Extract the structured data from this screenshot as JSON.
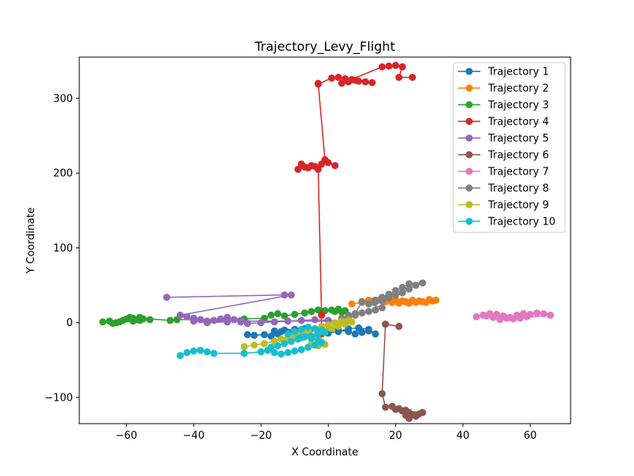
{
  "chart_data": {
    "type": "line",
    "title": "Trajectory_Levy_Flight",
    "xlabel": "X Coordinate",
    "ylabel": "Y Coordinate",
    "xlim": [
      -74,
      72
    ],
    "ylim": [
      -135,
      355
    ],
    "xticks": [
      -60,
      -40,
      -20,
      0,
      20,
      40,
      60
    ],
    "yticks": [
      -100,
      0,
      100,
      200,
      300
    ],
    "grid": false,
    "legend_position": "top-right",
    "marker": "circle",
    "series": [
      {
        "name": "Trajectory 1",
        "color": "#1f77b4",
        "points": [
          [
            -24,
            -16
          ],
          [
            -22,
            -17
          ],
          [
            -19,
            -16
          ],
          [
            -17,
            -18
          ],
          [
            -15,
            -15
          ],
          [
            -12,
            -14
          ],
          [
            -9,
            -13
          ],
          [
            -6,
            -12
          ],
          [
            -3,
            -11
          ],
          [
            0,
            -10
          ],
          [
            3,
            -10
          ],
          [
            6,
            -12
          ],
          [
            8,
            -15
          ],
          [
            10,
            -13
          ],
          [
            12,
            -11
          ],
          [
            14,
            -15
          ],
          [
            12,
            -9
          ],
          [
            9,
            -7
          ],
          [
            6,
            -8
          ],
          [
            3,
            -12
          ],
          [
            0,
            -14
          ],
          [
            -3,
            -12
          ],
          [
            -6,
            -10
          ],
          [
            -9,
            -11
          ],
          [
            -12,
            -13
          ],
          [
            -14,
            -12
          ],
          [
            -16,
            -11
          ],
          [
            -13,
            -10
          ],
          [
            -10,
            -9
          ],
          [
            -7,
            -8
          ]
        ]
      },
      {
        "name": "Trajectory 2",
        "color": "#ff7f0e",
        "points": [
          [
            7,
            25
          ],
          [
            10,
            27
          ],
          [
            13,
            29
          ],
          [
            15,
            30
          ],
          [
            17,
            28
          ],
          [
            19,
            27
          ],
          [
            21,
            26
          ],
          [
            23,
            28
          ],
          [
            25,
            30
          ],
          [
            27,
            29
          ],
          [
            29,
            27
          ],
          [
            31,
            29
          ],
          [
            32,
            30
          ],
          [
            30,
            31
          ],
          [
            28,
            28
          ],
          [
            26,
            27
          ],
          [
            24,
            26
          ],
          [
            22,
            29
          ],
          [
            20,
            31
          ],
          [
            18,
            30
          ],
          [
            16,
            29
          ],
          [
            14,
            28
          ],
          [
            12,
            30
          ]
        ]
      },
      {
        "name": "Trajectory 3",
        "color": "#2ca02c",
        "points": [
          [
            -67,
            1
          ],
          [
            -65,
            2
          ],
          [
            -63,
            0
          ],
          [
            -61,
            3
          ],
          [
            -60,
            5
          ],
          [
            -58,
            6
          ],
          [
            -57,
            4
          ],
          [
            -56,
            7
          ],
          [
            -55,
            5
          ],
          [
            -53,
            4
          ],
          [
            -56,
            3
          ],
          [
            -58,
            2
          ],
          [
            -62,
            1
          ],
          [
            -64,
            -1
          ],
          [
            -59,
            7
          ],
          [
            -47,
            3
          ],
          [
            -45,
            4
          ],
          [
            -25,
            5
          ],
          [
            -19,
            6
          ],
          [
            -17,
            10
          ],
          [
            -15,
            12
          ],
          [
            -13,
            9
          ],
          [
            -10,
            11
          ],
          [
            -7,
            13
          ],
          [
            -5,
            15
          ],
          [
            -3,
            17
          ],
          [
            -1,
            16
          ],
          [
            1,
            17
          ],
          [
            3,
            18
          ],
          [
            5,
            16
          ],
          [
            4,
            14
          ],
          [
            2,
            15
          ]
        ]
      },
      {
        "name": "Trajectory 4",
        "color": "#d62728",
        "points": [
          [
            -2,
            -15
          ],
          [
            -2,
            10
          ],
          [
            -3,
            205
          ],
          [
            -5,
            210
          ],
          [
            -7,
            208
          ],
          [
            -9,
            205
          ],
          [
            -8,
            212
          ],
          [
            -6,
            207
          ],
          [
            -4,
            209
          ],
          [
            -2,
            212
          ],
          [
            0,
            214
          ],
          [
            2,
            210
          ],
          [
            -1,
            218
          ],
          [
            -3,
            320
          ],
          [
            -3,
            319
          ],
          [
            1,
            327
          ],
          [
            3,
            328
          ],
          [
            5,
            326
          ],
          [
            7,
            325
          ],
          [
            9,
            323
          ],
          [
            11,
            322
          ],
          [
            13,
            321
          ],
          [
            8,
            324
          ],
          [
            6,
            322
          ],
          [
            4,
            320
          ],
          [
            16,
            342
          ],
          [
            18,
            343
          ],
          [
            20,
            344
          ],
          [
            22,
            342
          ],
          [
            21,
            328
          ],
          [
            25,
            328
          ]
        ]
      },
      {
        "name": "Trajectory 5",
        "color": "#9467bd",
        "points": [
          [
            -48,
            34
          ],
          [
            -13,
            37
          ],
          [
            -11,
            37
          ],
          [
            -44,
            10
          ],
          [
            -42,
            8
          ],
          [
            -40,
            6
          ],
          [
            -38,
            4
          ],
          [
            -36,
            2
          ],
          [
            -34,
            3
          ],
          [
            -32,
            5
          ],
          [
            -30,
            7
          ],
          [
            -28,
            4
          ],
          [
            -26,
            1
          ],
          [
            -24,
            -1
          ],
          [
            -20,
            0
          ],
          [
            -16,
            1
          ],
          [
            -12,
            2
          ],
          [
            -8,
            3
          ],
          [
            -4,
            4
          ],
          [
            0,
            3
          ],
          [
            4,
            2
          ],
          [
            -40,
            2
          ],
          [
            -36,
            0
          ],
          [
            -30,
            1
          ],
          [
            -26,
            3
          ]
        ]
      },
      {
        "name": "Trajectory 6",
        "color": "#8c564b",
        "points": [
          [
            21,
            -5
          ],
          [
            17,
            -2
          ],
          [
            16,
            -95
          ],
          [
            17,
            -113
          ],
          [
            19,
            -112
          ],
          [
            21,
            -115
          ],
          [
            23,
            -117
          ],
          [
            24,
            -120
          ],
          [
            25,
            -123
          ],
          [
            26,
            -125
          ],
          [
            27,
            -122
          ],
          [
            28,
            -120
          ],
          [
            22,
            -118
          ],
          [
            20,
            -116
          ],
          [
            24,
            -128
          ],
          [
            23,
            -124
          ]
        ]
      },
      {
        "name": "Trajectory 7",
        "color": "#e377c2",
        "points": [
          [
            44,
            8
          ],
          [
            46,
            10
          ],
          [
            48,
            12
          ],
          [
            50,
            11
          ],
          [
            52,
            9
          ],
          [
            54,
            7
          ],
          [
            56,
            10
          ],
          [
            58,
            12
          ],
          [
            60,
            11
          ],
          [
            62,
            13
          ],
          [
            64,
            12
          ],
          [
            66,
            10
          ],
          [
            55,
            5
          ],
          [
            53,
            6
          ],
          [
            51,
            4
          ],
          [
            49,
            7
          ],
          [
            47,
            9
          ],
          [
            57,
            6
          ],
          [
            59,
            8
          ]
        ]
      },
      {
        "name": "Trajectory 8",
        "color": "#7f7f7f",
        "points": [
          [
            4,
            6
          ],
          [
            6,
            8
          ],
          [
            8,
            10
          ],
          [
            10,
            13
          ],
          [
            12,
            15
          ],
          [
            14,
            17
          ],
          [
            16,
            20
          ],
          [
            12,
            25
          ],
          [
            14,
            28
          ],
          [
            16,
            30
          ],
          [
            18,
            33
          ],
          [
            20,
            37
          ],
          [
            22,
            40
          ],
          [
            24,
            45
          ],
          [
            26,
            50
          ],
          [
            28,
            53
          ],
          [
            24,
            52
          ],
          [
            22,
            47
          ],
          [
            20,
            43
          ],
          [
            18,
            38
          ],
          [
            16,
            34
          ],
          [
            14,
            30
          ],
          [
            10,
            28
          ],
          [
            8,
            12
          ],
          [
            6,
            10
          ]
        ]
      },
      {
        "name": "Trajectory 9",
        "color": "#bcbd22",
        "points": [
          [
            -25,
            -32
          ],
          [
            -22,
            -30
          ],
          [
            -19,
            -28
          ],
          [
            -16,
            -25
          ],
          [
            -14,
            -22
          ],
          [
            -12,
            -20
          ],
          [
            -10,
            -17
          ],
          [
            -8,
            -14
          ],
          [
            -6,
            -11
          ],
          [
            -4,
            -8
          ],
          [
            -2,
            -5
          ],
          [
            0,
            -3
          ],
          [
            2,
            0
          ],
          [
            4,
            2
          ],
          [
            6,
            3
          ],
          [
            7,
            1
          ],
          [
            5,
            -2
          ],
          [
            3,
            -5
          ],
          [
            1,
            -8
          ],
          [
            -1,
            -11
          ],
          [
            -3,
            -14
          ],
          [
            -4,
            -18
          ],
          [
            -3,
            -22
          ],
          [
            -2,
            -26
          ],
          [
            -1,
            -29
          ],
          [
            -3,
            -31
          ],
          [
            -5,
            -28
          ]
        ]
      },
      {
        "name": "Trajectory 10",
        "color": "#17becf",
        "points": [
          [
            -44,
            -44
          ],
          [
            -42,
            -40
          ],
          [
            -40,
            -38
          ],
          [
            -38,
            -37
          ],
          [
            -36,
            -39
          ],
          [
            -34,
            -41
          ],
          [
            -25,
            -41
          ],
          [
            -20,
            -39
          ],
          [
            -18,
            -37
          ],
          [
            -16,
            -40
          ],
          [
            -14,
            -42
          ],
          [
            -12,
            -40
          ],
          [
            -10,
            -38
          ],
          [
            -8,
            -36
          ],
          [
            -6,
            -33
          ],
          [
            -4,
            -30
          ],
          [
            -2,
            -27
          ],
          [
            -3,
            -24
          ],
          [
            -5,
            -21
          ],
          [
            -7,
            -19
          ],
          [
            -9,
            -22
          ],
          [
            -11,
            -25
          ],
          [
            -13,
            -28
          ],
          [
            -15,
            -31
          ],
          [
            -17,
            -33
          ],
          [
            -8,
            -20
          ],
          [
            -5,
            -18
          ],
          [
            -3,
            -15
          ],
          [
            -1,
            -13
          ],
          [
            -2,
            -10
          ],
          [
            -4,
            -8
          ],
          [
            -6,
            -6
          ],
          [
            -8,
            -9
          ],
          [
            -10,
            -12
          ],
          [
            -12,
            -15
          ]
        ]
      }
    ]
  }
}
